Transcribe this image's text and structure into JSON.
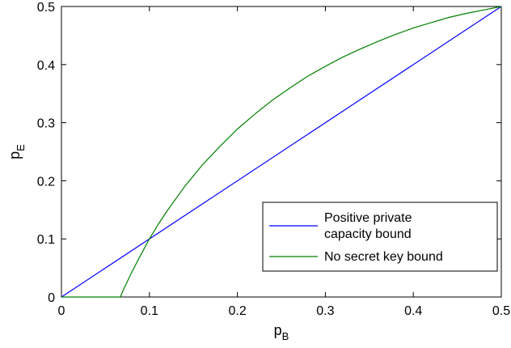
{
  "chart_data": {
    "type": "line",
    "xlabel": {
      "main": "p",
      "sub": "B"
    },
    "ylabel": {
      "main": "p",
      "sub": "E"
    },
    "xlim": [
      0,
      0.5
    ],
    "ylim": [
      0,
      0.5
    ],
    "x_ticks": [
      "0",
      "0.1",
      "0.2",
      "0.3",
      "0.4",
      "0.5"
    ],
    "y_ticks": [
      "0",
      "0.1",
      "0.2",
      "0.3",
      "0.4",
      "0.5"
    ],
    "grid": false,
    "legend_position": "lower-right",
    "series": [
      {
        "name": "Positive private capacity bound",
        "legend_lines": [
          "Positive private",
          "capacity bound"
        ],
        "color": "#0000ff",
        "x": [
          0,
          0.5
        ],
        "y": [
          0,
          0.5
        ]
      },
      {
        "name": "No secret key bound",
        "legend_lines": [
          "No secret key bound"
        ],
        "color": "#008000",
        "x": [
          0,
          0.067,
          0.07,
          0.075,
          0.08,
          0.09,
          0.1,
          0.11,
          0.12,
          0.14,
          0.16,
          0.18,
          0.2,
          0.22,
          0.24,
          0.26,
          0.28,
          0.3,
          0.32,
          0.34,
          0.36,
          0.38,
          0.4,
          0.42,
          0.44,
          0.46,
          0.48,
          0.5
        ],
        "y": [
          0,
          0,
          0.011,
          0.027,
          0.043,
          0.072,
          0.1,
          0.125,
          0.148,
          0.19,
          0.227,
          0.259,
          0.289,
          0.315,
          0.339,
          0.36,
          0.38,
          0.397,
          0.413,
          0.427,
          0.44,
          0.452,
          0.463,
          0.472,
          0.481,
          0.488,
          0.494,
          0.5
        ]
      }
    ]
  }
}
